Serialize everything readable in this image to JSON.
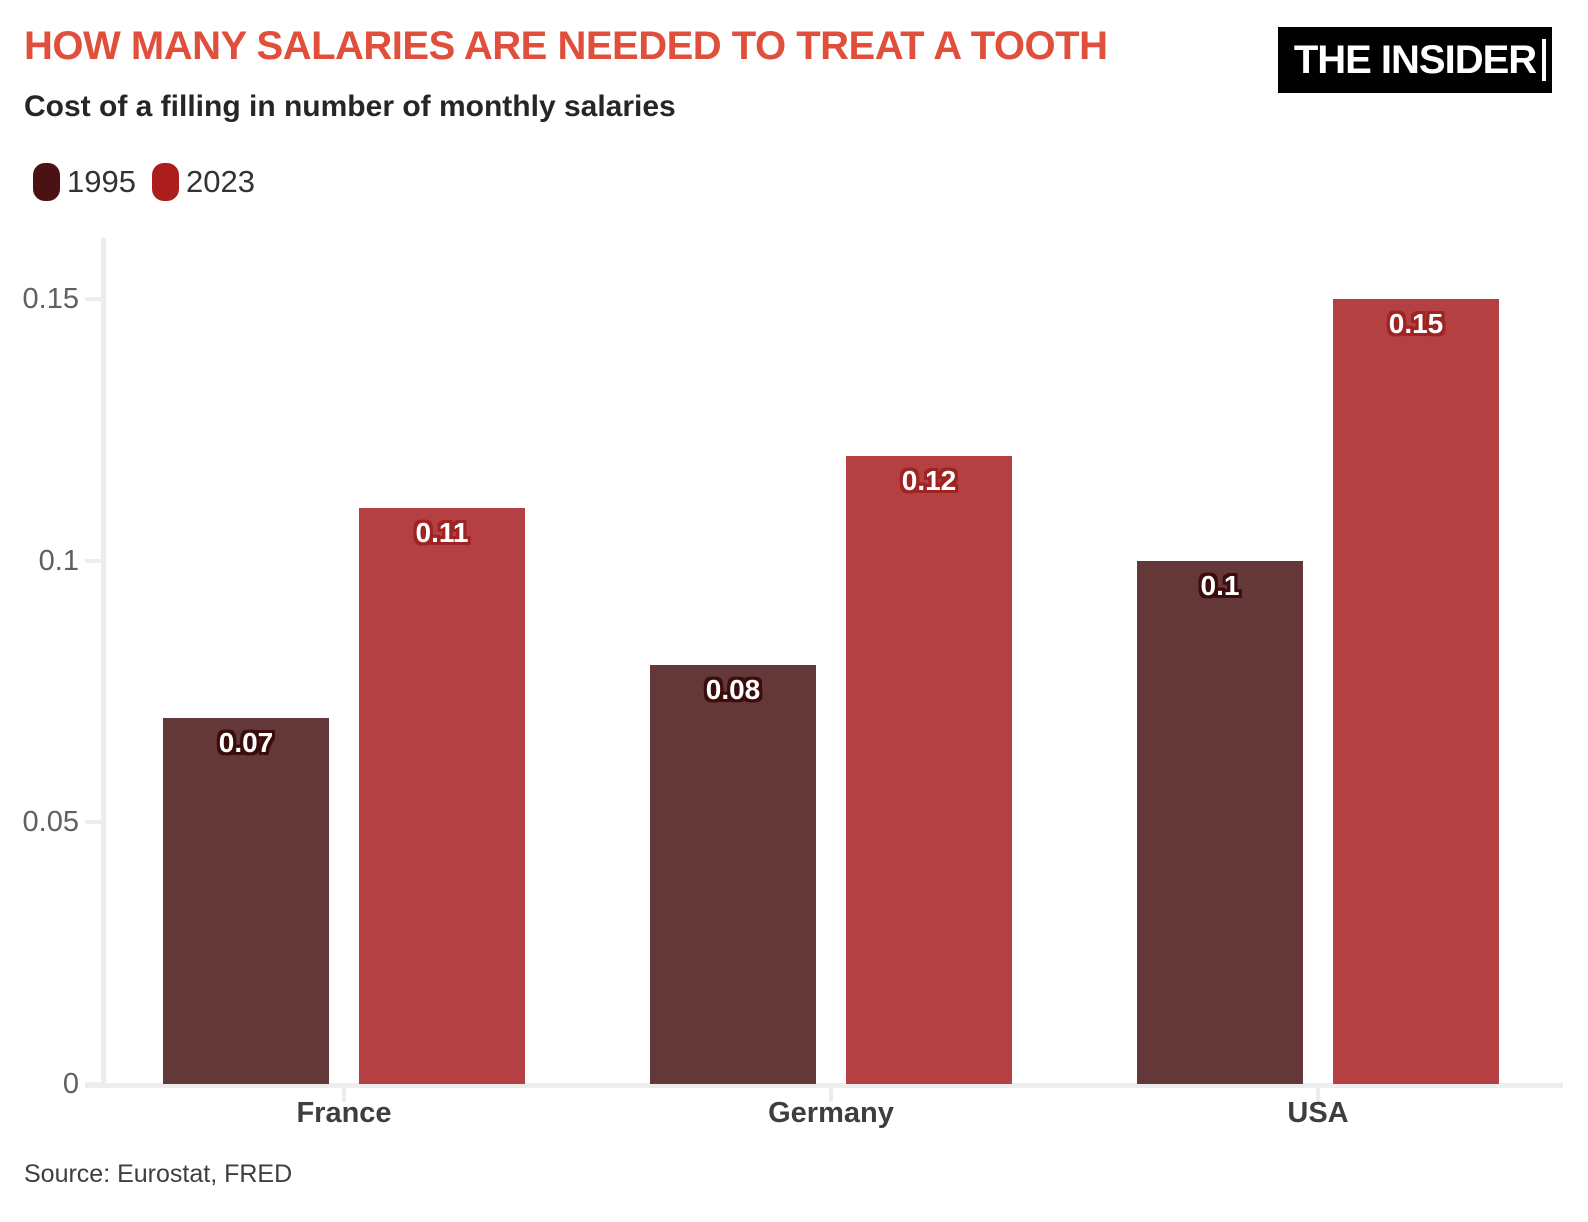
{
  "header": {
    "title": "HOW MANY SALARIES ARE NEEDED TO TREAT A TOOTH",
    "title_color": "#E04F3B",
    "subtitle": "Cost of a filling in number of monthly salaries",
    "logo_text": "THE INSIDER"
  },
  "legend": {
    "items": [
      {
        "label": "1995",
        "color": "#4A1212"
      },
      {
        "label": "2023",
        "color": "#AC1E1E"
      }
    ]
  },
  "footer": {
    "source": "Source: Eurostat, FRED"
  },
  "chart_data": {
    "type": "bar",
    "title": "HOW MANY SALARIES ARE NEEDED TO TREAT A TOOTH",
    "subtitle": "Cost of a filling in number of monthly salaries",
    "categories": [
      "France",
      "Germany",
      "USA"
    ],
    "series": [
      {
        "name": "1995",
        "color": "#643838",
        "label_outline": "#3C0D0D",
        "values": [
          0.07,
          0.08,
          0.1
        ]
      },
      {
        "name": "2023",
        "color": "#B54044",
        "label_outline": "#9E2424",
        "values": [
          0.11,
          0.12,
          0.15
        ]
      }
    ],
    "value_labels": [
      [
        "0.07",
        "0.08",
        "0.1"
      ],
      [
        "0.11",
        "0.12",
        "0.15"
      ]
    ],
    "ylim": [
      0,
      0.15
    ],
    "yticks": [
      0,
      0.05,
      0.1,
      0.15
    ],
    "ytick_labels": [
      "0",
      "0.05",
      "0.1",
      "0.15"
    ],
    "grid": false,
    "legend_position": "top-left",
    "source": "Source: Eurostat, FRED"
  }
}
